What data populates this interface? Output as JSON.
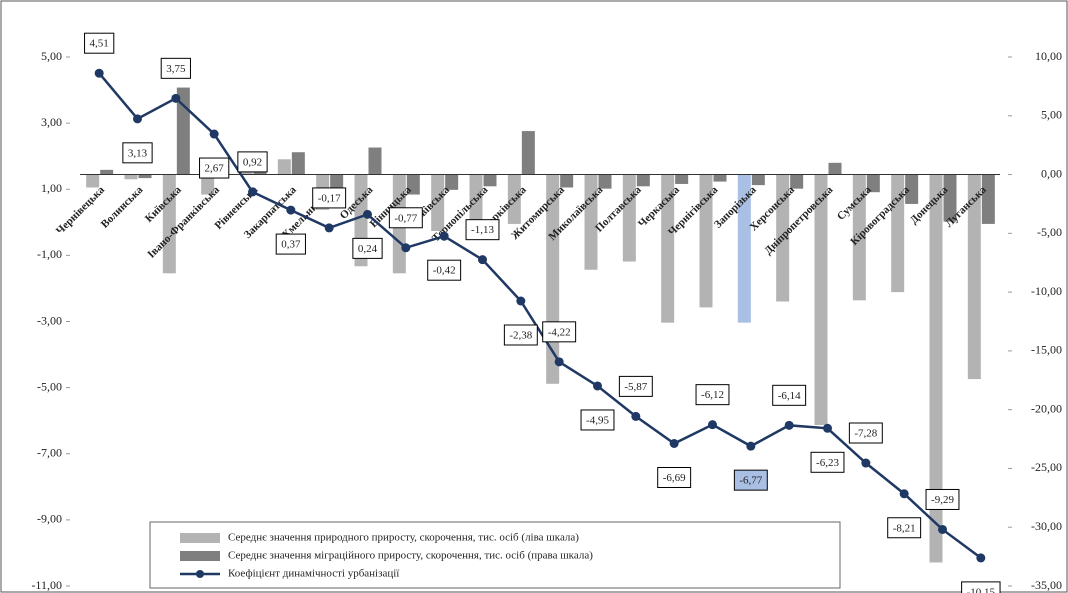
{
  "chart_data": {
    "type": "combo",
    "categories": [
      "Чернівецька",
      "Волинська",
      "Київська",
      "Івано-Франківська",
      "Рівненська",
      "Закарпатська",
      "Хмельницька",
      "Одеська",
      "Вінницька",
      "Львівська",
      "Тернопільська",
      "Харківська",
      "Житомирська",
      "Миколаївська",
      "Полтавська",
      "Черкаська",
      "Чернігівська",
      "Запорізька",
      "Херсонська",
      "Дніпропетровська",
      "Сумська",
      "Кіровоградська",
      "Донецька",
      "Луганська"
    ],
    "series": [
      {
        "name": "Середнє значення природного приросту, скорочення, тис. осіб (ліва шкала)",
        "type": "bar",
        "axis": "y2",
        "color": "#b3b3b3",
        "highlight": {
          "index": 17,
          "color": "#a9bfe3"
        },
        "values": [
          -1.1,
          -0.4,
          -8.4,
          -1.7,
          1.3,
          1.3,
          -3.0,
          -7.8,
          -8.4,
          -4.8,
          -5.0,
          -4.2,
          -17.8,
          -8.1,
          -7.4,
          -12.6,
          -11.3,
          -12.6,
          -10.8,
          -21.3,
          -10.7,
          -10.0,
          -33.0,
          -17.4
        ]
      },
      {
        "name": "Середнє значення міграційного приросту, скорочення, тис. осіб (права шкала)",
        "type": "bar",
        "axis": "y2",
        "color": "#7f7f7f",
        "values": [
          0.4,
          -0.3,
          7.4,
          0.3,
          0.7,
          1.9,
          -1.1,
          2.3,
          -1.7,
          -1.3,
          -1.0,
          3.7,
          -1.1,
          -1.2,
          -1.0,
          -0.8,
          -0.6,
          -0.9,
          -1.2,
          1.0,
          -1.5,
          -2.5,
          -4.0,
          -4.2
        ]
      },
      {
        "name": "Коефіцієнт динамічності урбанізації",
        "type": "line",
        "axis": "y",
        "color": "#1f3864",
        "highlight": {
          "index": 17,
          "color": "#a9bfe3"
        },
        "values": [
          4.51,
          3.13,
          3.75,
          2.67,
          0.92,
          0.37,
          -0.17,
          0.24,
          -0.77,
          -0.42,
          -1.13,
          -2.38,
          -4.22,
          -4.95,
          -5.87,
          -6.69,
          -6.12,
          -6.77,
          -6.14,
          -6.23,
          -7.28,
          -8.21,
          -9.29,
          -10.15
        ],
        "value_labels": [
          "4,51",
          "3,13",
          "3,75",
          "2,67",
          "0,92",
          "0,37",
          "-0,17",
          "0,24",
          "-0,77",
          "-0,42",
          "-1,13",
          "-2,38",
          "-4,22",
          "-4,95",
          "-5,87",
          "-6,69",
          "-6,12",
          "-6,77",
          "-6,14",
          "-6,23",
          "-7,28",
          "-8,21",
          "-9,29",
          "-10,15"
        ]
      }
    ],
    "ylim": [
      -11,
      5
    ],
    "yticks": [
      {
        "value": 5,
        "label": "5,00"
      },
      {
        "value": 3,
        "label": "3,00"
      },
      {
        "value": 1,
        "label": "1,00"
      },
      {
        "value": -1,
        "label": "-1,00"
      },
      {
        "value": -3,
        "label": "-3,00"
      },
      {
        "value": -5,
        "label": "-5,00"
      },
      {
        "value": -7,
        "label": "-7,00"
      },
      {
        "value": -9,
        "label": "-9,00"
      },
      {
        "value": -11,
        "label": "-11,00"
      }
    ],
    "y2lim": [
      -35,
      10
    ],
    "y2ticks": [
      {
        "value": 10,
        "label": "10,00"
      },
      {
        "value": 5,
        "label": "5,00"
      },
      {
        "value": 0,
        "label": "0,00"
      },
      {
        "value": -5,
        "label": "-5,00"
      },
      {
        "value": -10,
        "label": "-10,00"
      },
      {
        "value": -15,
        "label": "-15,00"
      },
      {
        "value": -20,
        "label": "-20,00"
      },
      {
        "value": -25,
        "label": "-25,00"
      },
      {
        "value": -30,
        "label": "-30,00"
      },
      {
        "value": -35,
        "label": "-35,00"
      }
    ],
    "legend": "bottom"
  }
}
